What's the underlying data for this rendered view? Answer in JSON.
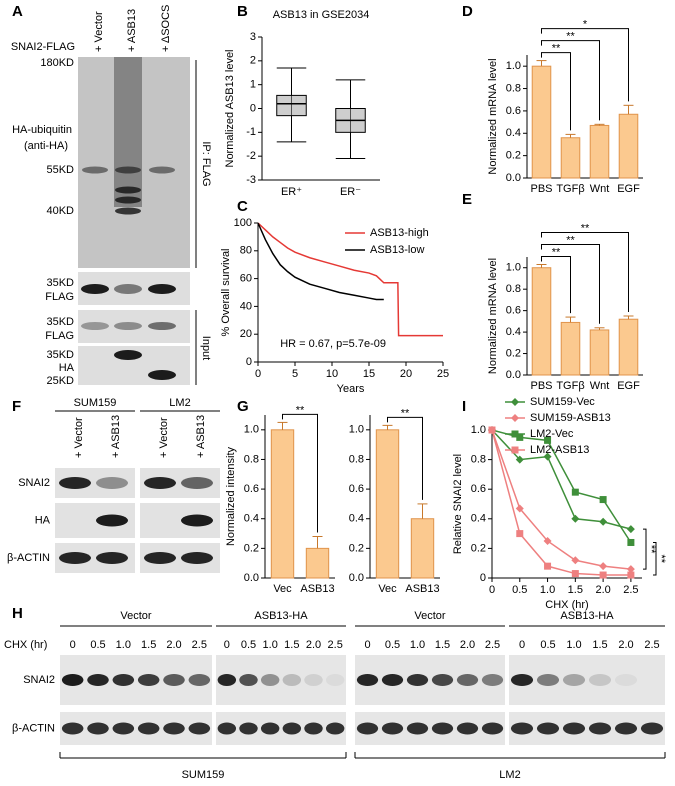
{
  "panel_a": {
    "panel": "A",
    "row_label": "SNAI2-FLAG",
    "lanes": [
      "+ Vector",
      "+ ASB13",
      "+ ΔSOCS"
    ],
    "markers": [
      "180KD",
      "55KD",
      "40KD",
      "35KD",
      "35KD",
      "35KD",
      "25KD"
    ],
    "ub_label": [
      "HA-ubiquitin",
      "(anti-HA)"
    ],
    "blot_labels": [
      "FLAG",
      "FLAG",
      "HA"
    ],
    "groups": [
      "IP: FLAG",
      "Input"
    ]
  },
  "panel_f": {
    "panel": "F",
    "groups": [
      "SUM159",
      "LM2"
    ],
    "lanes": [
      "+ Vector",
      "+ ASB13",
      "+ Vector",
      "+ ASB13"
    ],
    "rows": [
      "SNAI2",
      "HA",
      "β-ACTIN"
    ]
  },
  "panel_h": {
    "panel": "H",
    "treatment": "CHX (hr)",
    "groups": [
      "Vector",
      "ASB13-HA",
      "Vector",
      "ASB13-HA"
    ],
    "times": [
      "0",
      "0.5",
      "1.0",
      "1.5",
      "2.0",
      "2.5"
    ],
    "rows": [
      "SNAI2",
      "β-ACTIN"
    ],
    "cell_lines": [
      "SUM159",
      "LM2"
    ]
  },
  "chart_data": [
    {
      "panel": "B",
      "type": "box",
      "title": "ASB13 in GSE2034",
      "ylabel": "Normalized ASB13 level",
      "categories": [
        "ER⁺",
        "ER⁻"
      ],
      "boxes": [
        {
          "whislo": -1.4,
          "q1": -0.3,
          "med": 0.2,
          "q3": 0.55,
          "whishi": 1.7
        },
        {
          "whislo": -2.1,
          "q1": -1.0,
          "med": -0.5,
          "q3": 0.0,
          "whishi": 1.2
        }
      ],
      "color": "#9e9e9e",
      "ylim": [
        -3,
        3
      ],
      "yticks": [
        -3,
        -2,
        -1,
        0,
        1,
        2,
        3
      ]
    },
    {
      "panel": "C",
      "type": "line",
      "xlabel": "Years",
      "ylabel": "% Overall survival",
      "xlim": [
        0,
        25
      ],
      "xticks": [
        0,
        5,
        10,
        15,
        20,
        25
      ],
      "ylim": [
        0,
        100
      ],
      "yticks": [
        0,
        20,
        40,
        60,
        80,
        100
      ],
      "annotation": "HR = 0.67, p=5.7e-09",
      "series": [
        {
          "name": "ASB13-high",
          "color": "#e53935",
          "x": [
            0,
            1,
            2,
            3,
            4,
            5,
            7,
            9,
            11,
            13,
            15,
            16,
            17,
            18.9,
            19,
            25
          ],
          "values": [
            100,
            95,
            90,
            86,
            82,
            79,
            75,
            72,
            69,
            66,
            64,
            62,
            57,
            57,
            19,
            19
          ]
        },
        {
          "name": "ASB13-low",
          "color": "#000000",
          "x": [
            0,
            1,
            2,
            3,
            4,
            5,
            7,
            9,
            11,
            13,
            15,
            16,
            17
          ],
          "values": [
            100,
            88,
            78,
            70,
            65,
            61,
            56,
            53,
            50,
            48,
            46,
            45,
            45
          ]
        }
      ]
    },
    {
      "panel": "D",
      "type": "bar",
      "ylabel": "Normalized mRNA level",
      "categories": [
        "PBS",
        "TGFβ",
        "Wnt",
        "EGF"
      ],
      "values": [
        1.0,
        0.36,
        0.47,
        0.57
      ],
      "errors": [
        0.05,
        0.03,
        0.01,
        0.08
      ],
      "color": "#fbc98f",
      "ylim": [
        0,
        1.1
      ],
      "yticks": [
        {
          "value": 0,
          "label": "0.0"
        },
        0.2,
        0.4,
        0.6,
        0.8,
        {
          "value": 1,
          "label": "1.0"
        }
      ],
      "significance": [
        "**",
        "**",
        "*"
      ]
    },
    {
      "panel": "E",
      "type": "bar",
      "ylabel": "Normalized mRNA level",
      "categories": [
        "PBS",
        "TGFβ",
        "Wnt",
        "EGF"
      ],
      "values": [
        1.0,
        0.49,
        0.42,
        0.52
      ],
      "errors": [
        0.03,
        0.05,
        0.02,
        0.03
      ],
      "color": "#fbc98f",
      "ylim": [
        0,
        1.1
      ],
      "yticks": [
        {
          "value": 0,
          "label": "0.0"
        },
        0.2,
        0.4,
        0.6,
        0.8,
        {
          "value": 1,
          "label": "1.0"
        }
      ],
      "significance": [
        "**",
        "**",
        "**"
      ]
    },
    {
      "panel": "G",
      "type": "bar",
      "ylabel": "Normalized intensity",
      "categories": [
        "Vec",
        "ASB13"
      ],
      "values": [
        1.0,
        0.2
      ],
      "errors": [
        0.05,
        0.08
      ],
      "color": "#fbc98f",
      "ylim": [
        0,
        1.1
      ],
      "yticks": [
        {
          "value": 0,
          "label": "0.0"
        },
        0.2,
        0.4,
        0.6,
        0.8,
        {
          "value": 1,
          "label": "1.0"
        }
      ],
      "significance": [
        "**"
      ]
    },
    {
      "type": "bar",
      "categories": [
        "Vec",
        "ASB13"
      ],
      "values": [
        1.0,
        0.4
      ],
      "errors": [
        0.03,
        0.1
      ],
      "color": "#fbc98f",
      "ylim": [
        0,
        1.1
      ],
      "yticks": [
        {
          "value": 0,
          "label": "0.0"
        },
        0.2,
        0.4,
        0.6,
        0.8,
        {
          "value": 1,
          "label": "1.0"
        }
      ],
      "significance": [
        "**"
      ]
    },
    {
      "panel": "I",
      "type": "line",
      "xlabel": "CHX (hr)",
      "ylabel": "Relative SNAI2 level",
      "x": [
        0,
        0.5,
        1,
        1.5,
        2,
        2.5
      ],
      "xlim": [
        0,
        2.7
      ],
      "xticks": [
        0,
        0.5,
        {
          "value": 1,
          "label": "1.0"
        },
        1.5,
        {
          "value": 2,
          "label": "2.0"
        },
        2.5
      ],
      "ylim": [
        0,
        1
      ],
      "yticks": [
        0,
        0.2,
        0.4,
        0.6,
        0.8,
        {
          "value": 1,
          "label": "1.0"
        }
      ],
      "significance": [
        "**",
        "**"
      ],
      "series": [
        {
          "name": "SUM159-Vec",
          "color": "#3f8f3a",
          "marker": "diamond",
          "values": [
            1.0,
            0.8,
            0.82,
            0.4,
            0.38,
            0.33
          ]
        },
        {
          "name": "SUM159-ASB13",
          "color": "#ee8080",
          "marker": "diamond",
          "values": [
            1.0,
            0.47,
            0.25,
            0.12,
            0.08,
            0.06
          ]
        },
        {
          "name": "LM2-Vec",
          "color": "#3f8f3a",
          "marker": "square",
          "values": [
            1.0,
            0.95,
            0.93,
            0.58,
            0.53,
            0.24
          ]
        },
        {
          "name": "LM2-ASB13",
          "color": "#ee8080",
          "marker": "square",
          "values": [
            1.0,
            0.3,
            0.08,
            0.03,
            0.02,
            0.02
          ]
        }
      ]
    }
  ]
}
